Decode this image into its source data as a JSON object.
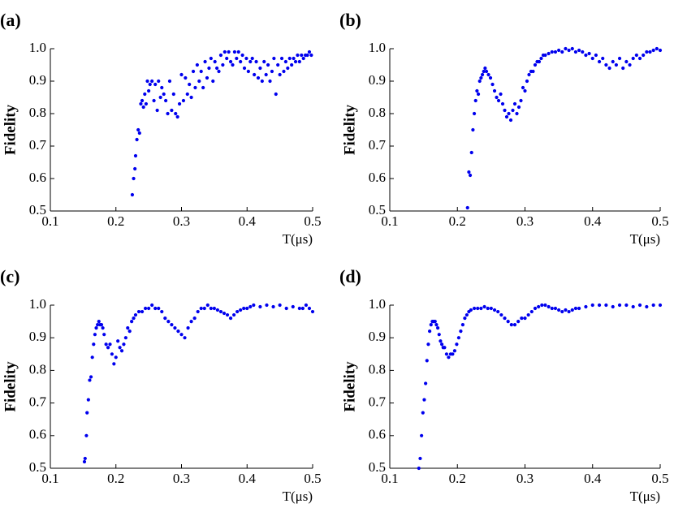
{
  "chart_data": [
    {
      "type": "scatter",
      "title": "(a)",
      "xlabel": "T(μs)",
      "ylabel": "Fidelity",
      "color": "#0000ee",
      "xlim": [
        0.1,
        0.5
      ],
      "ylim": [
        0.5,
        1.0
      ],
      "xticks": [
        0.1,
        0.2,
        0.3,
        0.4,
        0.5
      ],
      "yticks": [
        0.5,
        0.6,
        0.7,
        0.8,
        0.9,
        {
          "value": 1,
          "label": "1.0"
        }
      ],
      "x": [
        0.225,
        0.227,
        0.229,
        0.23,
        0.232,
        0.234,
        0.236,
        0.238,
        0.24,
        0.242,
        0.244,
        0.246,
        0.248,
        0.25,
        0.252,
        0.255,
        0.258,
        0.26,
        0.263,
        0.265,
        0.268,
        0.27,
        0.273,
        0.276,
        0.279,
        0.282,
        0.285,
        0.288,
        0.291,
        0.294,
        0.297,
        0.3,
        0.303,
        0.306,
        0.309,
        0.312,
        0.315,
        0.318,
        0.321,
        0.324,
        0.327,
        0.33,
        0.333,
        0.336,
        0.339,
        0.342,
        0.345,
        0.348,
        0.351,
        0.354,
        0.357,
        0.36,
        0.363,
        0.366,
        0.369,
        0.372,
        0.375,
        0.378,
        0.381,
        0.384,
        0.387,
        0.39,
        0.393,
        0.396,
        0.399,
        0.402,
        0.405,
        0.408,
        0.411,
        0.414,
        0.417,
        0.42,
        0.423,
        0.426,
        0.429,
        0.432,
        0.435,
        0.438,
        0.441,
        0.444,
        0.447,
        0.45,
        0.453,
        0.456,
        0.459,
        0.462,
        0.465,
        0.468,
        0.471,
        0.474,
        0.477,
        0.48,
        0.483,
        0.486,
        0.489,
        0.492,
        0.495,
        0.498
      ],
      "values": [
        0.55,
        0.6,
        0.63,
        0.67,
        0.72,
        0.75,
        0.74,
        0.83,
        0.84,
        0.82,
        0.86,
        0.83,
        0.9,
        0.87,
        0.89,
        0.9,
        0.84,
        0.89,
        0.81,
        0.9,
        0.85,
        0.88,
        0.86,
        0.84,
        0.8,
        0.9,
        0.81,
        0.86,
        0.8,
        0.79,
        0.83,
        0.92,
        0.84,
        0.91,
        0.86,
        0.89,
        0.85,
        0.93,
        0.88,
        0.95,
        0.9,
        0.93,
        0.88,
        0.96,
        0.91,
        0.94,
        0.97,
        0.9,
        0.96,
        0.94,
        0.93,
        0.98,
        0.95,
        0.99,
        0.97,
        0.99,
        0.96,
        0.95,
        0.99,
        0.97,
        0.99,
        0.96,
        0.98,
        0.94,
        0.97,
        0.93,
        0.96,
        0.97,
        0.92,
        0.96,
        0.91,
        0.94,
        0.9,
        0.96,
        0.92,
        0.95,
        0.9,
        0.93,
        0.97,
        0.86,
        0.95,
        0.92,
        0.97,
        0.93,
        0.96,
        0.94,
        0.97,
        0.95,
        0.97,
        0.96,
        0.98,
        0.96,
        0.98,
        0.97,
        0.98,
        0.98,
        0.99,
        0.98
      ]
    },
    {
      "type": "scatter",
      "title": "(b)",
      "xlabel": "T(μs)",
      "ylabel": "Fidelity",
      "color": "#0000ee",
      "xlim": [
        0.1,
        0.5
      ],
      "ylim": [
        0.5,
        1.0
      ],
      "xticks": [
        0.1,
        0.2,
        0.3,
        0.4,
        0.5
      ],
      "yticks": [
        0.5,
        0.6,
        0.7,
        0.8,
        0.9,
        {
          "value": 1,
          "label": "1.0"
        }
      ],
      "x": [
        0.215,
        0.217,
        0.219,
        0.221,
        0.223,
        0.225,
        0.227,
        0.229,
        0.231,
        0.233,
        0.235,
        0.237,
        0.239,
        0.241,
        0.243,
        0.246,
        0.249,
        0.252,
        0.255,
        0.258,
        0.261,
        0.264,
        0.267,
        0.27,
        0.273,
        0.276,
        0.279,
        0.282,
        0.285,
        0.288,
        0.291,
        0.294,
        0.297,
        0.3,
        0.303,
        0.306,
        0.309,
        0.312,
        0.315,
        0.318,
        0.321,
        0.324,
        0.327,
        0.33,
        0.335,
        0.34,
        0.345,
        0.35,
        0.355,
        0.36,
        0.365,
        0.37,
        0.375,
        0.38,
        0.385,
        0.39,
        0.395,
        0.4,
        0.405,
        0.41,
        0.415,
        0.42,
        0.425,
        0.43,
        0.435,
        0.44,
        0.445,
        0.45,
        0.455,
        0.46,
        0.465,
        0.47,
        0.475,
        0.48,
        0.485,
        0.49,
        0.495,
        0.5
      ],
      "values": [
        0.51,
        0.62,
        0.61,
        0.68,
        0.75,
        0.8,
        0.84,
        0.87,
        0.86,
        0.9,
        0.91,
        0.92,
        0.93,
        0.94,
        0.93,
        0.92,
        0.91,
        0.89,
        0.87,
        0.85,
        0.84,
        0.86,
        0.83,
        0.81,
        0.79,
        0.8,
        0.78,
        0.81,
        0.83,
        0.8,
        0.82,
        0.84,
        0.88,
        0.87,
        0.9,
        0.92,
        0.93,
        0.93,
        0.95,
        0.96,
        0.96,
        0.97,
        0.98,
        0.98,
        0.985,
        0.99,
        0.99,
        0.995,
        0.99,
        1.0,
        0.995,
        1.0,
        0.99,
        0.995,
        0.99,
        0.98,
        0.985,
        0.97,
        0.98,
        0.96,
        0.97,
        0.95,
        0.94,
        0.96,
        0.95,
        0.97,
        0.94,
        0.96,
        0.95,
        0.97,
        0.98,
        0.97,
        0.98,
        0.99,
        0.99,
        0.995,
        1.0,
        0.995
      ]
    },
    {
      "type": "scatter",
      "title": "(c)",
      "xlabel": "T(μs)",
      "ylabel": "Fidelity",
      "color": "#0000ee",
      "xlim": [
        0.1,
        0.5
      ],
      "ylim": [
        0.5,
        1.0
      ],
      "xticks": [
        0.1,
        0.2,
        0.3,
        0.4,
        0.5
      ],
      "yticks": [
        0.5,
        0.6,
        0.7,
        0.8,
        0.9,
        {
          "value": 1,
          "label": "1.0"
        }
      ],
      "x": [
        0.152,
        0.153,
        0.155,
        0.156,
        0.158,
        0.16,
        0.162,
        0.164,
        0.166,
        0.168,
        0.17,
        0.172,
        0.174,
        0.176,
        0.178,
        0.18,
        0.182,
        0.185,
        0.188,
        0.191,
        0.194,
        0.197,
        0.2,
        0.203,
        0.206,
        0.209,
        0.212,
        0.215,
        0.218,
        0.221,
        0.224,
        0.227,
        0.23,
        0.235,
        0.24,
        0.245,
        0.25,
        0.255,
        0.26,
        0.265,
        0.27,
        0.275,
        0.28,
        0.285,
        0.29,
        0.295,
        0.3,
        0.305,
        0.31,
        0.315,
        0.32,
        0.325,
        0.33,
        0.335,
        0.34,
        0.345,
        0.35,
        0.355,
        0.36,
        0.365,
        0.37,
        0.375,
        0.38,
        0.385,
        0.39,
        0.395,
        0.4,
        0.405,
        0.41,
        0.42,
        0.43,
        0.44,
        0.45,
        0.46,
        0.47,
        0.48,
        0.485,
        0.49,
        0.495,
        0.5
      ],
      "values": [
        0.52,
        0.53,
        0.6,
        0.67,
        0.71,
        0.77,
        0.78,
        0.84,
        0.88,
        0.91,
        0.93,
        0.94,
        0.95,
        0.94,
        0.94,
        0.93,
        0.91,
        0.88,
        0.87,
        0.88,
        0.85,
        0.82,
        0.84,
        0.89,
        0.87,
        0.86,
        0.88,
        0.9,
        0.93,
        0.92,
        0.95,
        0.96,
        0.97,
        0.98,
        0.98,
        0.99,
        0.99,
        1.0,
        0.99,
        0.99,
        0.98,
        0.96,
        0.95,
        0.94,
        0.93,
        0.92,
        0.91,
        0.9,
        0.93,
        0.95,
        0.96,
        0.98,
        0.99,
        0.99,
        1.0,
        0.99,
        0.99,
        0.985,
        0.98,
        0.975,
        0.97,
        0.96,
        0.97,
        0.98,
        0.985,
        0.99,
        0.99,
        0.995,
        1.0,
        0.995,
        1.0,
        0.995,
        1.0,
        0.99,
        0.995,
        0.99,
        0.99,
        1.0,
        0.99,
        0.98
      ]
    },
    {
      "type": "scatter",
      "title": "(d)",
      "xlabel": "T(μs)",
      "ylabel": "Fidelity",
      "color": "#0000ee",
      "xlim": [
        0.1,
        0.5
      ],
      "ylim": [
        0.5,
        1.0
      ],
      "xticks": [
        0.1,
        0.2,
        0.3,
        0.4,
        0.5
      ],
      "yticks": [
        0.5,
        0.6,
        0.7,
        0.8,
        0.9,
        {
          "value": 1,
          "label": "1.0"
        }
      ],
      "x": [
        0.143,
        0.145,
        0.147,
        0.149,
        0.151,
        0.153,
        0.155,
        0.157,
        0.159,
        0.161,
        0.163,
        0.165,
        0.167,
        0.169,
        0.171,
        0.173,
        0.175,
        0.177,
        0.179,
        0.181,
        0.184,
        0.187,
        0.19,
        0.193,
        0.196,
        0.199,
        0.202,
        0.205,
        0.208,
        0.211,
        0.214,
        0.217,
        0.22,
        0.225,
        0.23,
        0.235,
        0.24,
        0.245,
        0.25,
        0.255,
        0.26,
        0.265,
        0.27,
        0.275,
        0.28,
        0.285,
        0.29,
        0.295,
        0.3,
        0.305,
        0.31,
        0.315,
        0.32,
        0.325,
        0.33,
        0.335,
        0.34,
        0.345,
        0.35,
        0.355,
        0.36,
        0.365,
        0.37,
        0.375,
        0.38,
        0.39,
        0.4,
        0.41,
        0.42,
        0.43,
        0.44,
        0.45,
        0.46,
        0.47,
        0.48,
        0.49,
        0.5
      ],
      "values": [
        0.5,
        0.53,
        0.6,
        0.67,
        0.71,
        0.76,
        0.83,
        0.88,
        0.92,
        0.94,
        0.95,
        0.95,
        0.95,
        0.94,
        0.93,
        0.91,
        0.89,
        0.88,
        0.87,
        0.87,
        0.85,
        0.84,
        0.85,
        0.85,
        0.86,
        0.88,
        0.9,
        0.92,
        0.94,
        0.96,
        0.97,
        0.98,
        0.985,
        0.99,
        0.99,
        0.99,
        0.995,
        0.99,
        0.99,
        0.985,
        0.98,
        0.97,
        0.96,
        0.95,
        0.94,
        0.94,
        0.95,
        0.96,
        0.96,
        0.97,
        0.98,
        0.99,
        0.995,
        1.0,
        1.0,
        0.995,
        0.99,
        0.99,
        0.985,
        0.98,
        0.985,
        0.98,
        0.985,
        0.99,
        0.99,
        0.995,
        1.0,
        1.0,
        1.0,
        0.995,
        1.0,
        1.0,
        0.995,
        1.0,
        0.995,
        1.0,
        1.0
      ]
    }
  ]
}
